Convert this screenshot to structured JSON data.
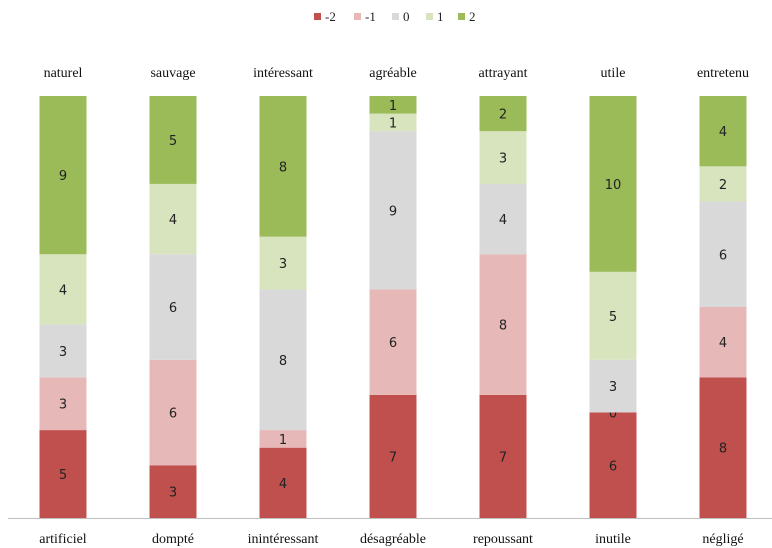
{
  "chart_data": {
    "type": "bar",
    "stacked": true,
    "orientation": "vertical",
    "series": [
      {
        "name": "-2",
        "color": "#C0504D",
        "values": [
          5,
          3,
          4,
          7,
          7,
          6,
          8
        ],
        "labels": [
          "5",
          "3",
          "4",
          "7",
          "7",
          "6",
          "8"
        ]
      },
      {
        "name": "-1",
        "color": "#E6B9B8",
        "values": [
          3,
          6,
          1,
          6,
          8,
          0,
          4
        ],
        "labels": [
          "3",
          "6",
          "1",
          "6",
          "8",
          "0",
          "4"
        ]
      },
      {
        "name": "0",
        "color": "#D9D9D9",
        "values": [
          3,
          6,
          8,
          9,
          4,
          3,
          6
        ],
        "labels": [
          "3",
          "6",
          "8",
          "9",
          "4",
          "3",
          "6"
        ]
      },
      {
        "name": "1",
        "color": "#D7E4BD",
        "values": [
          4,
          4,
          3,
          1,
          3,
          5,
          2
        ],
        "labels": [
          "4",
          "4",
          "3",
          "1",
          "3",
          "5",
          "2"
        ]
      },
      {
        "name": "2",
        "color": "#9BBB59",
        "values": [
          9,
          5,
          8,
          1,
          2,
          10,
          4
        ],
        "labels": [
          "9",
          "5",
          "8",
          "1",
          "2",
          "10",
          "4"
        ]
      }
    ],
    "top_labels": [
      "naturel",
      "sauvage",
      "intéressant",
      "agréable",
      "attrayant",
      "utile",
      "entretenu"
    ],
    "bottom_labels": [
      "artificiel",
      "dompté",
      "inintéressant",
      "désagréable",
      "repoussant",
      "inutile",
      "négligé"
    ],
    "ylim": [
      0,
      24
    ],
    "legend_position": "top-center",
    "grid": false
  }
}
